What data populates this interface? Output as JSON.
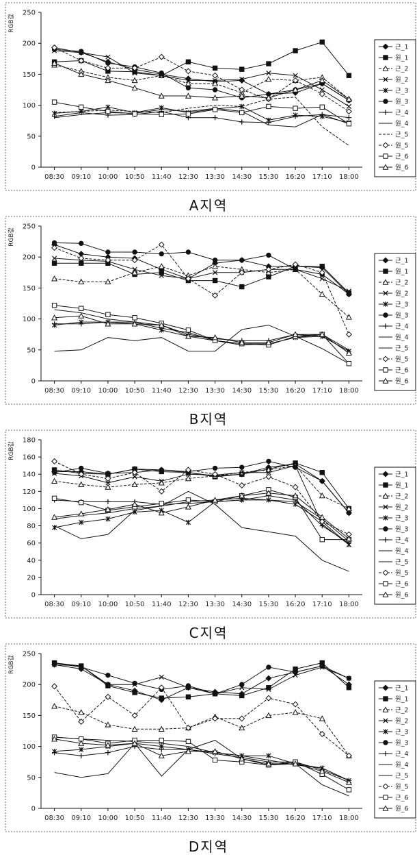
{
  "chart_data": [
    {
      "type": "line",
      "caption": "A지역",
      "ylabel": "RGB값",
      "ylim": [
        0,
        250
      ],
      "yticks": [
        0,
        50,
        100,
        150,
        200,
        250
      ],
      "categories": [
        "08:30",
        "09:10",
        "10:00",
        "10:50",
        "11:40",
        "12:30",
        "13:30",
        "14:30",
        "15:30",
        "16:20",
        "17:10",
        "18:00"
      ],
      "legend_position": "right",
      "grid": false,
      "series": [
        {
          "name": "근_1",
          "marker": "diamond",
          "dash": "solid",
          "values": [
            193,
            185,
            170,
            158,
            150,
            143,
            138,
            140,
            118,
            120,
            135,
            108
          ]
        },
        {
          "name": "원_1",
          "marker": "square",
          "dash": "solid",
          "values": [
            170,
            172,
            155,
            154,
            148,
            170,
            160,
            158,
            167,
            188,
            202,
            148
          ]
        },
        {
          "name": "근_2",
          "marker": "triangle-open",
          "dash": "dash",
          "values": [
            165,
            155,
            145,
            140,
            148,
            135,
            135,
            120,
            142,
            140,
            145,
            110
          ]
        },
        {
          "name": "원_2",
          "marker": "x",
          "dash": "solid",
          "values": [
            188,
            185,
            178,
            152,
            148,
            140,
            140,
            142,
            152,
            148,
            125,
            98
          ]
        },
        {
          "name": "근_3",
          "marker": "star",
          "dash": "solid",
          "values": [
            87,
            90,
            97,
            88,
            96,
            88,
            94,
            98,
            76,
            84,
            82,
            72
          ]
        },
        {
          "name": "원_3",
          "marker": "circle",
          "dash": "solid",
          "values": [
            190,
            187,
            168,
            162,
            152,
            128,
            125,
            112,
            118,
            125,
            135,
            108
          ]
        },
        {
          "name": "근_4",
          "marker": "plus",
          "dash": "solid",
          "values": [
            82,
            88,
            84,
            85,
            90,
            80,
            80,
            73,
            72,
            82,
            85,
            80
          ]
        },
        {
          "name": "원_4",
          "marker": "none",
          "dash": "solid",
          "values": [
            80,
            85,
            88,
            87,
            93,
            90,
            95,
            90,
            68,
            65,
            85,
            70
          ]
        },
        {
          "name": "근_5",
          "marker": "none",
          "dash": "dash",
          "values": [
            88,
            90,
            92,
            90,
            88,
            95,
            100,
            98,
            110,
            113,
            65,
            35
          ]
        },
        {
          "name": "원_5",
          "marker": "diamond-open",
          "dash": "dash",
          "values": [
            193,
            172,
            160,
            160,
            178,
            155,
            148,
            125,
            110,
            140,
            118,
            90
          ]
        },
        {
          "name": "근_6",
          "marker": "square-open",
          "dash": "solid",
          "values": [
            105,
            97,
            90,
            86,
            85,
            86,
            93,
            88,
            98,
            95,
            97,
            70
          ]
        },
        {
          "name": "원_6",
          "marker": "triangle-open",
          "dash": "solid",
          "values": [
            168,
            150,
            140,
            128,
            115,
            115,
            112,
            115,
            112,
            125,
            140,
            110
          ]
        }
      ]
    },
    {
      "type": "line",
      "caption": "B지역",
      "ylabel": "RGB값",
      "ylim": [
        0,
        250
      ],
      "yticks": [
        0,
        50,
        100,
        150,
        200,
        250
      ],
      "categories": [
        "08:30",
        "09:10",
        "10:00",
        "10:50",
        "11:40",
        "12:30",
        "13:30",
        "14:30",
        "15:30",
        "16:20",
        "17:10",
        "18:00"
      ],
      "legend_position": "right",
      "grid": false,
      "series": [
        {
          "name": "근_1",
          "marker": "diamond",
          "dash": "solid",
          "values": [
            220,
            205,
            200,
            198,
            180,
            165,
            190,
            195,
            185,
            185,
            183,
            140
          ]
        },
        {
          "name": "원_1",
          "marker": "square",
          "dash": "solid",
          "values": [
            190,
            190,
            190,
            172,
            175,
            162,
            162,
            152,
            168,
            185,
            185,
            142
          ]
        },
        {
          "name": "근_2",
          "marker": "triangle-open",
          "dash": "dash",
          "values": [
            165,
            160,
            160,
            175,
            185,
            170,
            185,
            180,
            175,
            180,
            140,
            103
          ]
        },
        {
          "name": "원_2",
          "marker": "x",
          "dash": "solid",
          "values": [
            198,
            195,
            193,
            180,
            170,
            165,
            175,
            175,
            180,
            180,
            165,
            145
          ]
        },
        {
          "name": "근_3",
          "marker": "star",
          "dash": "solid",
          "values": [
            90,
            95,
            95,
            92,
            82,
            72,
            65,
            60,
            60,
            70,
            72,
            48
          ]
        },
        {
          "name": "원_3",
          "marker": "circle",
          "dash": "solid",
          "values": [
            223,
            222,
            208,
            208,
            205,
            208,
            195,
            195,
            203,
            180,
            172,
            140
          ]
        },
        {
          "name": "근_4",
          "marker": "plus",
          "dash": "solid",
          "values": [
            92,
            92,
            95,
            95,
            90,
            75,
            68,
            65,
            65,
            75,
            72,
            48
          ]
        },
        {
          "name": "원_4",
          "marker": "none",
          "dash": "solid",
          "values": [
            115,
            110,
            100,
            95,
            85,
            78,
            65,
            58,
            60,
            70,
            75,
            50
          ]
        },
        {
          "name": "근_5",
          "marker": "none",
          "dash": "solid",
          "values": [
            48,
            50,
            70,
            65,
            70,
            48,
            48,
            83,
            90,
            72,
            52,
            28
          ]
        },
        {
          "name": "원_5",
          "marker": "diamond-open",
          "dash": "dash",
          "values": [
            215,
            198,
            195,
            195,
            220,
            165,
            138,
            175,
            180,
            188,
            175,
            75
          ]
        },
        {
          "name": "근_6",
          "marker": "square-open",
          "dash": "solid",
          "values": [
            122,
            117,
            107,
            102,
            93,
            82,
            65,
            60,
            58,
            72,
            75,
            28
          ]
        },
        {
          "name": "원_6",
          "marker": "triangle-open",
          "dash": "solid",
          "values": [
            102,
            105,
            92,
            92,
            90,
            72,
            70,
            62,
            62,
            75,
            75,
            45
          ]
        }
      ]
    },
    {
      "type": "line",
      "caption": "C지역",
      "ylabel": "RGB값",
      "ylim": [
        0,
        180
      ],
      "yticks": [
        0,
        20,
        40,
        60,
        80,
        100,
        120,
        140,
        160,
        180
      ],
      "categories": [
        "08:30",
        "09:10",
        "10:00",
        "10:50",
        "11:40",
        "12:30",
        "13:30",
        "14:30",
        "15:30",
        "16:20",
        "17:10",
        "18:00"
      ],
      "legend_position": "right",
      "grid": false,
      "series": [
        {
          "name": "근_1",
          "marker": "diamond",
          "dash": "solid",
          "values": [
            143,
            143,
            140,
            146,
            145,
            142,
            138,
            140,
            148,
            152,
            132,
            95
          ]
        },
        {
          "name": "원_1",
          "marker": "square",
          "dash": "solid",
          "values": [
            145,
            141,
            140,
            146,
            143,
            142,
            137,
            140,
            146,
            153,
            142,
            100
          ]
        },
        {
          "name": "근_2",
          "marker": "triangle-open",
          "dash": "dash",
          "values": [
            132,
            128,
            125,
            128,
            130,
            135,
            138,
            142,
            145,
            150,
            115,
            100
          ]
        },
        {
          "name": "원_2",
          "marker": "x",
          "dash": "solid",
          "values": [
            141,
            138,
            130,
            137,
            132,
            140,
            139,
            142,
            142,
            150,
            82,
            58
          ]
        },
        {
          "name": "근_3",
          "marker": "star",
          "dash": "solid",
          "values": [
            78,
            84,
            88,
            96,
            98,
            84,
            108,
            110,
            110,
            105,
            85,
            58
          ]
        },
        {
          "name": "원_3",
          "marker": "circle",
          "dash": "solid",
          "values": [
            142,
            147,
            141,
            142,
            145,
            143,
            147,
            148,
            155,
            148,
            132,
            95
          ]
        },
        {
          "name": "근_4",
          "marker": "plus",
          "dash": "solid",
          "values": [
            110,
            108,
            108,
            108,
            105,
            106,
            108,
            110,
            115,
            110,
            80,
            60
          ]
        },
        {
          "name": "원_4",
          "marker": "none",
          "dash": "solid",
          "values": [
            88,
            92,
            95,
            100,
            103,
            108,
            110,
            112,
            110,
            108,
            88,
            62
          ]
        },
        {
          "name": "근_5",
          "marker": "none",
          "dash": "solid",
          "values": [
            80,
            65,
            70,
            98,
            103,
            120,
            105,
            78,
            73,
            68,
            40,
            27
          ]
        },
        {
          "name": "원_5",
          "marker": "diamond-open",
          "dash": "dash",
          "values": [
            155,
            140,
            135,
            142,
            120,
            145,
            140,
            127,
            137,
            125,
            85,
            70
          ]
        },
        {
          "name": "근_6",
          "marker": "square-open",
          "dash": "solid",
          "values": [
            112,
            107,
            98,
            102,
            106,
            110,
            108,
            115,
            122,
            113,
            64,
            64
          ]
        },
        {
          "name": "원_6",
          "marker": "triangle-open",
          "dash": "solid",
          "values": [
            90,
            94,
            99,
            105,
            95,
            102,
            110,
            115,
            118,
            115,
            90,
            65
          ]
        }
      ]
    },
    {
      "type": "line",
      "caption": "D지역",
      "ylabel": "RGB값",
      "ylim": [
        0,
        250
      ],
      "yticks": [
        0,
        50,
        100,
        150,
        200,
        250
      ],
      "categories": [
        "08:30",
        "09:10",
        "10:00",
        "10:50",
        "11:40",
        "12:30",
        "13:30",
        "14:30",
        "15:30",
        "16:20",
        "17:10",
        "18:00"
      ],
      "legend_position": "right",
      "grid": false,
      "series": [
        {
          "name": "근_1",
          "marker": "diamond",
          "dash": "solid",
          "values": [
            232,
            225,
            200,
            190,
            175,
            195,
            188,
            185,
            210,
            220,
            230,
            200
          ]
        },
        {
          "name": "원_1",
          "marker": "square",
          "dash": "solid",
          "values": [
            235,
            230,
            198,
            187,
            178,
            180,
            185,
            182,
            195,
            225,
            235,
            195
          ]
        },
        {
          "name": "근_2",
          "marker": "triangle-open",
          "dash": "dash",
          "values": [
            165,
            155,
            135,
            128,
            128,
            130,
            148,
            130,
            150,
            155,
            145,
            85
          ]
        },
        {
          "name": "원_2",
          "marker": "x",
          "dash": "solid",
          "values": [
            232,
            230,
            200,
            200,
            212,
            195,
            185,
            195,
            192,
            215,
            228,
            210
          ]
        },
        {
          "name": "근_3",
          "marker": "star",
          "dash": "solid",
          "values": [
            92,
            95,
            100,
            105,
            100,
            95,
            90,
            85,
            85,
            72,
            65,
            45
          ]
        },
        {
          "name": "원_3",
          "marker": "circle",
          "dash": "solid",
          "values": [
            235,
            228,
            215,
            202,
            192,
            198,
            185,
            200,
            228,
            220,
            230,
            210
          ]
        },
        {
          "name": "근_4",
          "marker": "plus",
          "dash": "solid",
          "values": [
            90,
            85,
            90,
            100,
            95,
            95,
            88,
            82,
            75,
            75,
            62,
            45
          ]
        },
        {
          "name": "원_4",
          "marker": "none",
          "dash": "solid",
          "values": [
            115,
            112,
            110,
            108,
            105,
            100,
            90,
            85,
            78,
            70,
            65,
            45
          ]
        },
        {
          "name": "근_5",
          "marker": "none",
          "dash": "solid",
          "values": [
            58,
            50,
            56,
            105,
            52,
            95,
            110,
            80,
            70,
            72,
            38,
            20
          ]
        },
        {
          "name": "원_5",
          "marker": "diamond-open",
          "dash": "dash",
          "values": [
            197,
            140,
            180,
            150,
            195,
            130,
            145,
            145,
            178,
            168,
            120,
            85
          ]
        },
        {
          "name": "근_6",
          "marker": "square-open",
          "dash": "solid",
          "values": [
            115,
            112,
            105,
            110,
            110,
            108,
            78,
            75,
            70,
            75,
            55,
            30
          ]
        },
        {
          "name": "원_6",
          "marker": "triangle-open",
          "dash": "solid",
          "values": [
            112,
            105,
            102,
            105,
            85,
            92,
            92,
            80,
            72,
            72,
            60,
            42
          ]
        }
      ]
    }
  ]
}
